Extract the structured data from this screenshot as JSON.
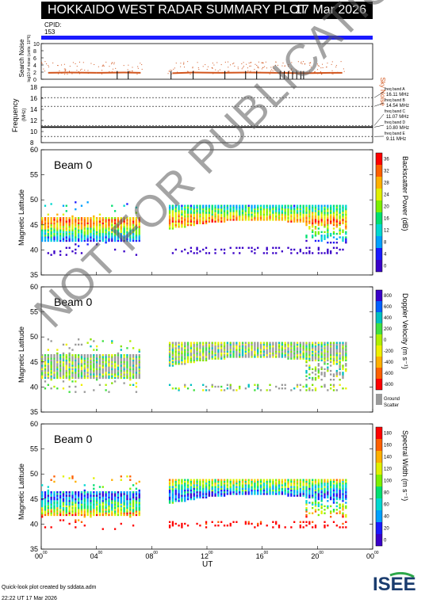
{
  "header": {
    "title": "HOKKAIDO WEST RADAR SUMMARY PLOT",
    "date": "17 Mar 2026",
    "cpid_label": "CPID:",
    "cpid_value": "153"
  },
  "colors": {
    "cpid_bar": "#1a1aff",
    "sky_noise": "#d2561e",
    "search_noise_scatter": "#d2561e"
  },
  "noise_panel": {
    "ylabel": "Search Noise",
    "ylabel_sub": "log10 of noise (units: 10^6)",
    "yticks": [
      "0",
      "2",
      "4",
      "6",
      "8",
      "10"
    ],
    "right_label": "Sky Noise"
  },
  "freq_panel": {
    "ylabel": "Frequency",
    "ylabel_sub": "(MHz)",
    "yticks": [
      "8",
      "10",
      "12",
      "14",
      "16",
      "18"
    ],
    "bands": [
      {
        "label": "freq band A",
        "value": "16.11 MHz"
      },
      {
        "label": "freq band B",
        "value": "14.54 MHz"
      },
      {
        "label": "freq band C",
        "value": "11.07 MHz"
      },
      {
        "label": "freq band D",
        "value": "10.80 MHz"
      },
      {
        "label": "freq band E",
        "value": "9.11 MHz"
      }
    ]
  },
  "panels": [
    {
      "beam": "Beam  0",
      "ylabel": "Magnetic Latitude",
      "cbar_label": "Backscatter Power (dB)",
      "cbar_ticks": [
        "0",
        "4",
        "8",
        "12",
        "16",
        "20",
        "24",
        "28",
        "32",
        "36"
      ]
    },
    {
      "beam": "Beam  0",
      "ylabel": "Magnetic Latitude",
      "cbar_label": "Doppler Velocity (m s⁻¹)",
      "cbar_ticks": [
        "-800",
        "-600",
        "-400",
        "-200",
        "0",
        "200",
        "400",
        "600",
        "800"
      ],
      "ground_label": "Ground",
      "scatter_label": "Scatter"
    },
    {
      "beam": "Beam  0",
      "ylabel": "Magnetic Latitude",
      "cbar_label": "Spectral Width (m s⁻¹)",
      "cbar_ticks": [
        "0",
        "20",
        "40",
        "60",
        "80",
        "100",
        "120",
        "140",
        "160",
        "180"
      ]
    }
  ],
  "lat_ticks": [
    "35",
    "40",
    "45",
    "50",
    "55",
    "60"
  ],
  "time_ticks": [
    "00",
    "04",
    "08",
    "12",
    "16",
    "20",
    "00"
  ],
  "time_tick_sup": "00",
  "xlabel": "UT",
  "footer": {
    "line1": "Quick-look plot created by sddata.adm",
    "line2": "22:22 UT 17 Mar 2026"
  },
  "watermark": "NOT FOR PUBLICATION",
  "logo_text": "ISEE",
  "chart_data": [
    {
      "type": "scatter",
      "title": "Search Noise",
      "xlabel": "",
      "ylabel": "Search Noise",
      "xlim": [
        0,
        24
      ],
      "ylim": [
        0,
        10
      ],
      "series": [
        {
          "name": "Sky Noise",
          "x": [
            0.5,
            2,
            4,
            6,
            7.2,
            9.5,
            11,
            13,
            15,
            17,
            19,
            21,
            21.8
          ],
          "y": [
            1.8,
            1.9,
            1.8,
            1.9,
            1.8,
            1.7,
            1.9,
            1.8,
            1.9,
            1.8,
            1.7,
            1.8,
            1.8
          ]
        }
      ]
    },
    {
      "type": "line",
      "title": "Frequency",
      "xlabel": "",
      "ylabel": "Frequency (MHz)",
      "xlim": [
        0,
        24
      ],
      "ylim": [
        8,
        18
      ],
      "series": [
        {
          "name": "freq band A",
          "x": [
            0,
            24
          ],
          "y": [
            16.11,
            16.11
          ]
        },
        {
          "name": "freq band B",
          "x": [
            0,
            24
          ],
          "y": [
            14.54,
            14.54
          ]
        },
        {
          "name": "freq band C",
          "x": [
            0,
            24
          ],
          "y": [
            11.07,
            11.07
          ]
        },
        {
          "name": "freq band D",
          "x": [
            0,
            24
          ],
          "y": [
            10.8,
            10.8
          ]
        },
        {
          "name": "freq band E",
          "x": [
            0,
            24
          ],
          "y": [
            9.11,
            9.11
          ]
        }
      ]
    },
    {
      "type": "heatmap",
      "title": "Backscatter Power",
      "xlabel": "UT",
      "ylabel": "Magnetic Latitude",
      "xlim": [
        0,
        24
      ],
      "ylim": [
        35,
        60
      ],
      "zlim": [
        0,
        36
      ]
    },
    {
      "type": "heatmap",
      "title": "Doppler Velocity",
      "xlabel": "UT",
      "ylabel": "Magnetic Latitude",
      "xlim": [
        0,
        24
      ],
      "ylim": [
        35,
        60
      ],
      "zlim": [
        -800,
        800
      ]
    },
    {
      "type": "heatmap",
      "title": "Spectral Width",
      "xlabel": "UT",
      "ylabel": "Magnetic Latitude",
      "xlim": [
        0,
        24
      ],
      "ylim": [
        35,
        60
      ],
      "zlim": [
        0,
        180
      ]
    }
  ]
}
